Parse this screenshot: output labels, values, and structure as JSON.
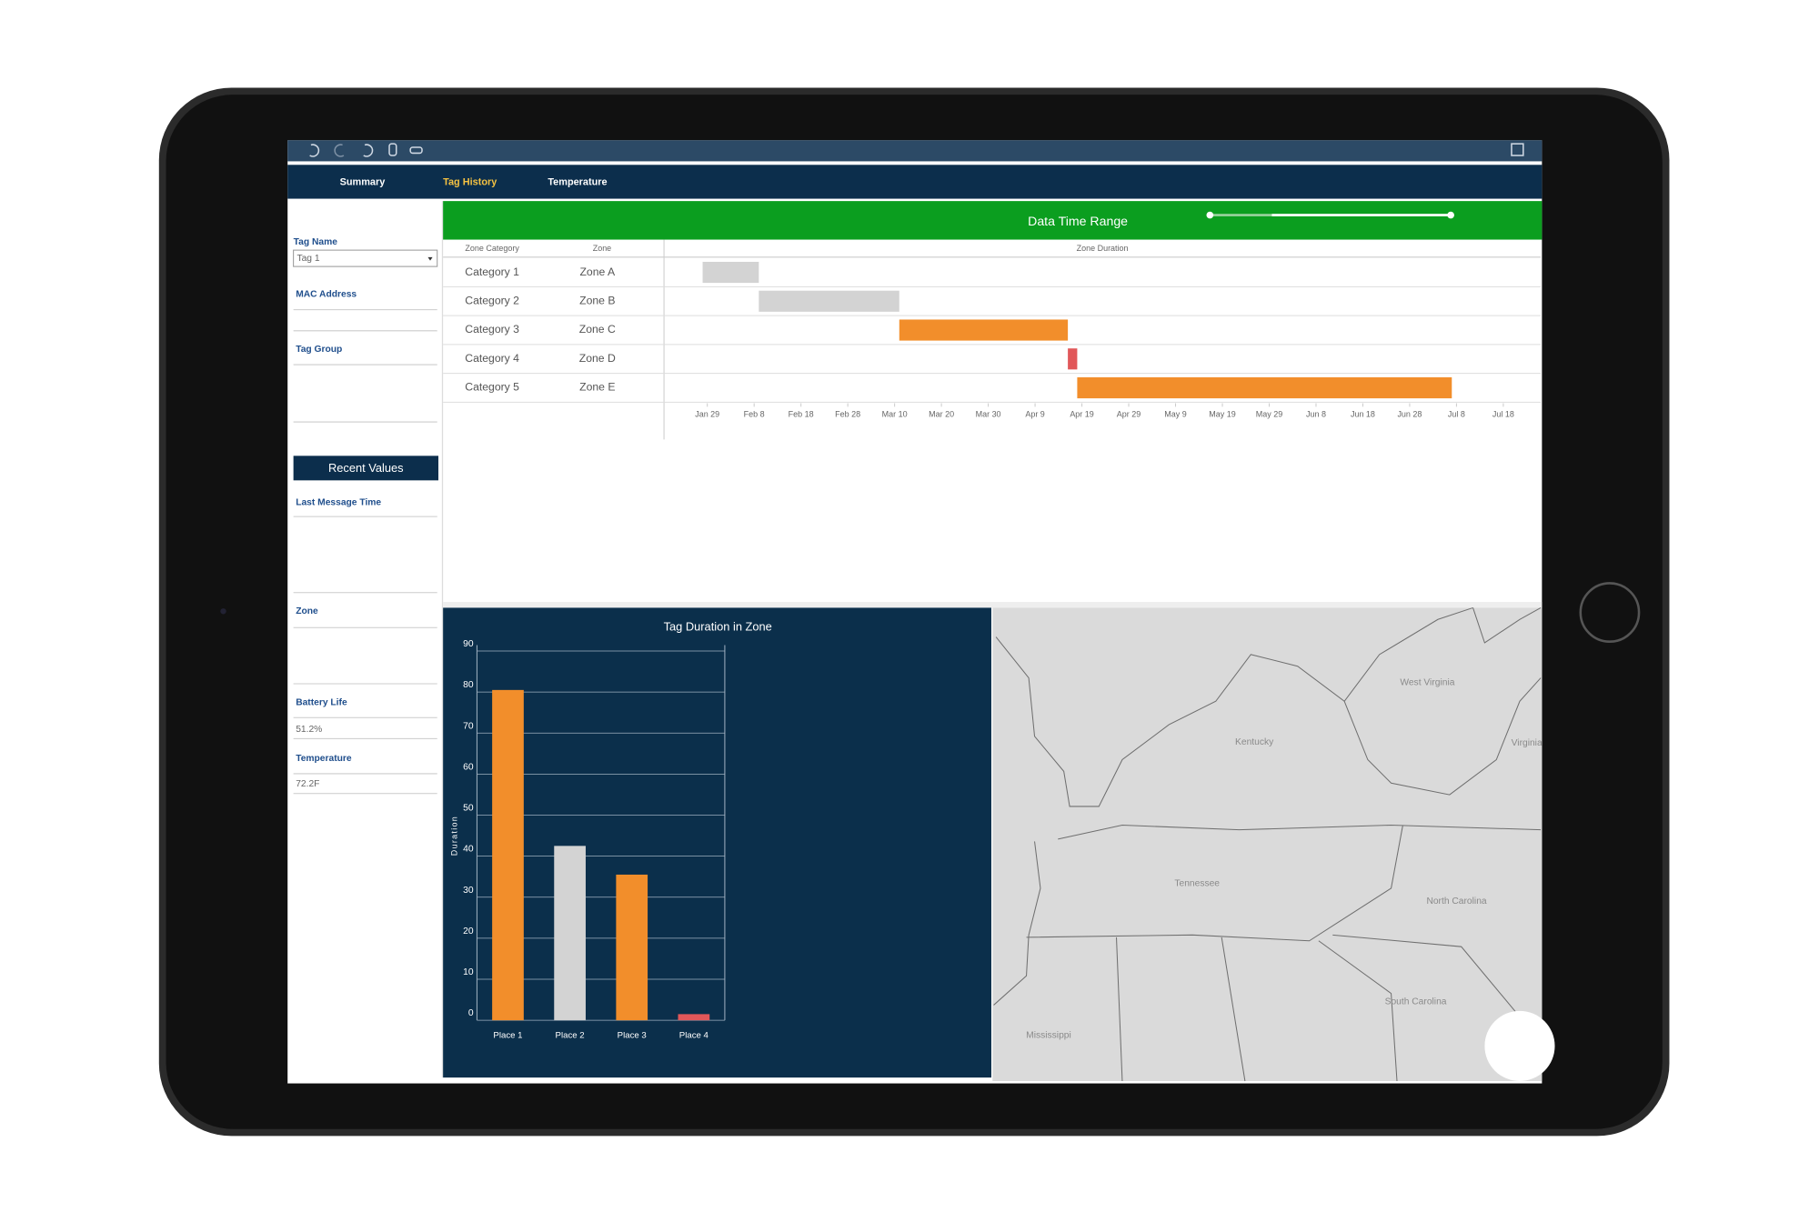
{
  "tabs": {
    "items": [
      "Summary",
      "Tag History",
      "Temperature"
    ],
    "active": 1
  },
  "sidebar": {
    "tag_name_label": "Tag Name",
    "tag_name_value": "Tag 1",
    "mac_label": "MAC Address",
    "group_label": "Tag Group",
    "recent_header": "Recent Values",
    "last_message_label": "Last Message Time",
    "zone_label": "Zone",
    "battery_label": "Battery Life",
    "battery_value": "51.2%",
    "temperature_label": "Temperature",
    "temperature_value": "72.2F"
  },
  "chart_data": [
    {
      "type": "gantt",
      "title": "Data Time Range",
      "columns": [
        "Zone Category",
        "Zone",
        "Zone Duration"
      ],
      "categories": [
        "Category 1",
        "Category 2",
        "Category 3",
        "Category 4",
        "Category 5"
      ],
      "zones": [
        "Zone A",
        "Zone B",
        "Zone C",
        "Zone D",
        "Zone E"
      ],
      "start": [
        "01-28",
        "02-09",
        "03-11",
        "04-16",
        "04-18"
      ],
      "end": [
        "02-09",
        "03-11",
        "04-16",
        "04-18",
        "07-07"
      ],
      "colors": [
        "#d3d3d3",
        "#d3d3d3",
        "#f28e2b",
        "#e15759",
        "#f28e2b"
      ],
      "xlim": [
        "01-20",
        "07-26"
      ],
      "xticks": [
        {
          "value": "01-29",
          "label": "Jan 29"
        },
        {
          "value": "02-08",
          "label": "Feb 8"
        },
        {
          "value": "02-18",
          "label": "Feb 18"
        },
        {
          "value": "02-28",
          "label": "Feb 28"
        },
        {
          "value": "03-10",
          "label": "Mar 10"
        },
        {
          "value": "03-20",
          "label": "Mar 20"
        },
        {
          "value": "03-30",
          "label": "Mar 30"
        },
        {
          "value": "04-09",
          "label": "Apr 9"
        },
        {
          "value": "04-19",
          "label": "Apr 19"
        },
        {
          "value": "04-29",
          "label": "Apr 29"
        },
        {
          "value": "05-09",
          "label": "May 9"
        },
        {
          "value": "05-19",
          "label": "May 19"
        },
        {
          "value": "05-29",
          "label": "May 29"
        },
        {
          "value": "06-08",
          "label": "Jun 8"
        },
        {
          "value": "06-18",
          "label": "Jun 18"
        },
        {
          "value": "06-28",
          "label": "Jun 28"
        },
        {
          "value": "07-08",
          "label": "Jul 8"
        },
        {
          "value": "07-18",
          "label": "Jul 18"
        }
      ]
    },
    {
      "type": "bar",
      "title": "Tag Duration in Zone",
      "y_label": "Duration",
      "categories": [
        "Place 1",
        "Place 2",
        "Place 3",
        "Place 4"
      ],
      "values": [
        80.5,
        42.5,
        35.5,
        1.5
      ],
      "colors": [
        "#f28e2b",
        "#d3d3d3",
        "#f28e2b",
        "#e15759"
      ],
      "ylim": [
        0,
        90
      ],
      "yticks": [
        0,
        10,
        20,
        30,
        40,
        50,
        60,
        70,
        80,
        90
      ],
      "grid": true
    }
  ],
  "map": {
    "labels": [
      "Kentucky",
      "West Virginia",
      "Virginia",
      "Tennessee",
      "North Carolina",
      "South Carolina",
      "Mississippi"
    ]
  }
}
